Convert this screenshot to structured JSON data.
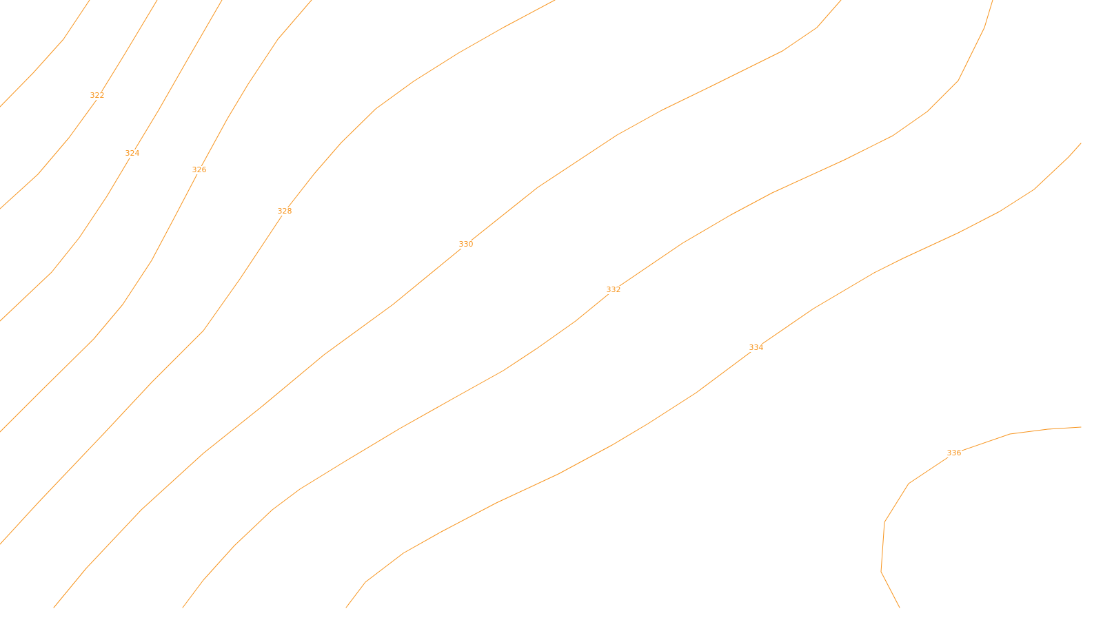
{
  "map": {
    "background_color": "#ffffff",
    "contour_color": "#f7941d",
    "contours": [
      {
        "id": "c-left-1",
        "elevation": null
      },
      {
        "id": "c-322",
        "elevation": "322"
      },
      {
        "id": "c-324",
        "elevation": "324"
      },
      {
        "id": "c-326",
        "elevation": "326"
      },
      {
        "id": "c-328",
        "elevation": "328"
      },
      {
        "id": "c-330",
        "elevation": "330"
      },
      {
        "id": "c-332",
        "elevation": "332"
      },
      {
        "id": "c-334",
        "elevation": "334"
      },
      {
        "id": "c-336",
        "elevation": "336"
      }
    ]
  }
}
